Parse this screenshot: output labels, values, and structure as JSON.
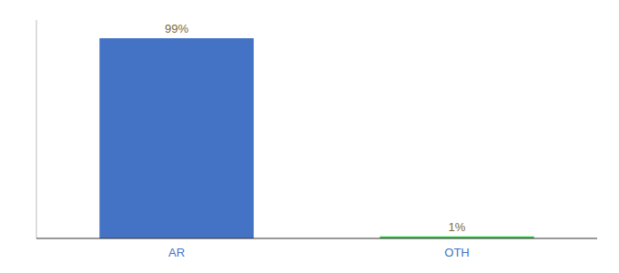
{
  "chart_data": {
    "type": "bar",
    "categories": [
      "AR",
      "OTH"
    ],
    "values": [
      99,
      1
    ],
    "value_labels": [
      "99%",
      "1%"
    ],
    "colors": [
      "#4472c4",
      "#2ecc40"
    ],
    "ylim": [
      0,
      108
    ],
    "data_labels": true,
    "tick_labels": "x"
  }
}
